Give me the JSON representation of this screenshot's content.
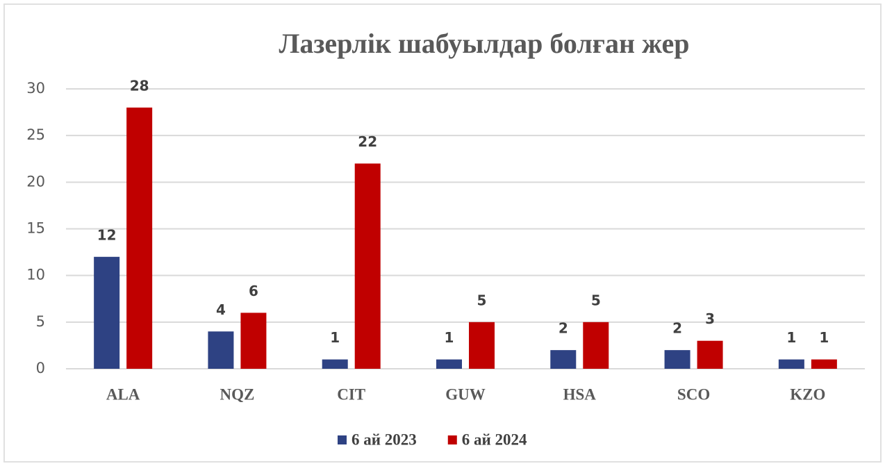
{
  "chart_data": {
    "type": "bar",
    "title": "Лазерлік шабуылдар болған жер",
    "categories": [
      "ALA",
      "NQZ",
      "CIT",
      "GUW",
      "HSA",
      "SCO",
      "KZO"
    ],
    "series": [
      {
        "name": "6 ай 2023",
        "color": "#2e4283",
        "values": [
          12,
          4,
          1,
          1,
          2,
          2,
          1
        ]
      },
      {
        "name": "6 ай 2024",
        "color": "#c00000",
        "values": [
          28,
          6,
          22,
          5,
          5,
          3,
          1
        ]
      }
    ],
    "ylim": [
      0,
      30
    ],
    "yticks": [
      0,
      5,
      10,
      15,
      20,
      25,
      30
    ],
    "grid": true,
    "legend": "bottom"
  }
}
